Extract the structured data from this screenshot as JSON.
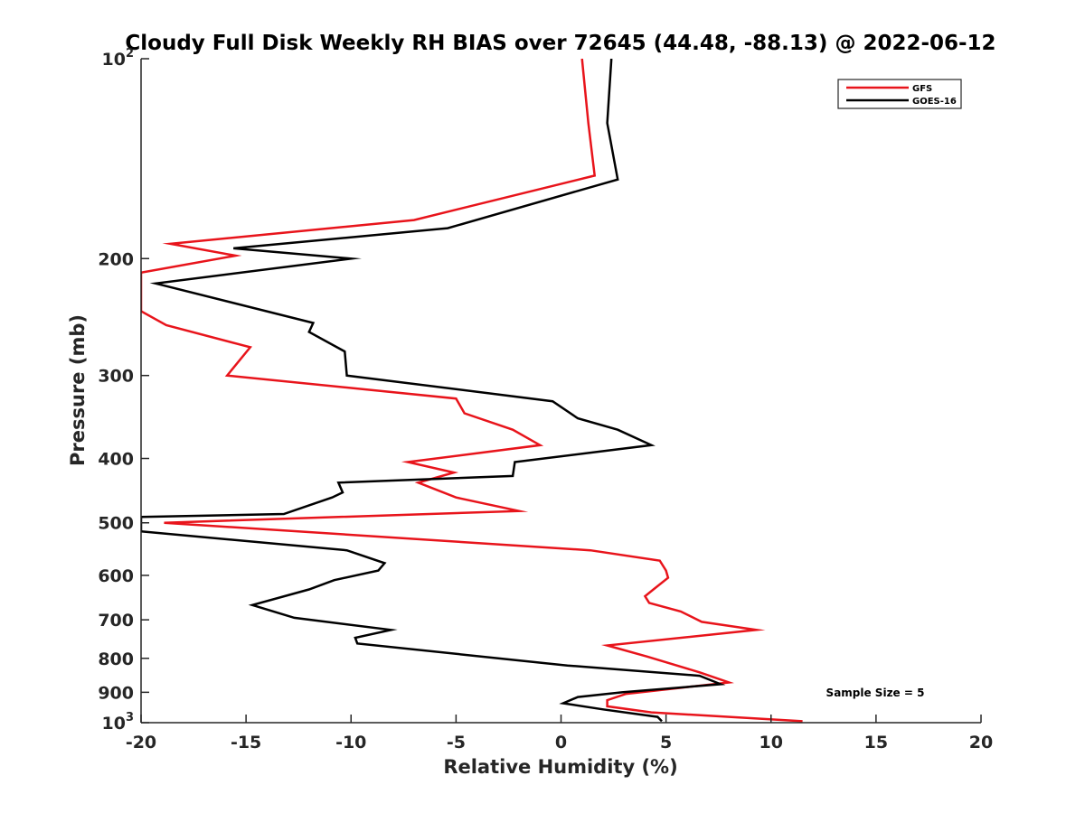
{
  "chart_data": {
    "type": "line",
    "title": "Cloudy Full Disk Weekly RH BIAS over 72645 (44.48, -88.13) @ 2022-06-12",
    "xlabel": "Relative Humidity (%)",
    "ylabel": "Pressure (mb)",
    "xlim": [
      -20,
      20
    ],
    "ylim": [
      100,
      1000
    ],
    "y_scale": "log",
    "y_reversed": true,
    "grid": false,
    "legend_position": "top-right",
    "x_ticks": [
      -20,
      -15,
      -10,
      -5,
      0,
      5,
      10,
      15,
      20
    ],
    "x_tick_labels": [
      "-20",
      "-15",
      "-10",
      "-5",
      "0",
      "5",
      "10",
      "15",
      "20"
    ],
    "y_ticks": [
      100,
      200,
      300,
      400,
      500,
      600,
      700,
      800,
      900,
      1000
    ],
    "y_tick_labels": [
      {
        "base": "10",
        "exp": "2"
      },
      {
        "base": "200",
        "exp": ""
      },
      {
        "base": "300",
        "exp": ""
      },
      {
        "base": "400",
        "exp": ""
      },
      {
        "base": "500",
        "exp": ""
      },
      {
        "base": "600",
        "exp": ""
      },
      {
        "base": "700",
        "exp": ""
      },
      {
        "base": "800",
        "exp": ""
      },
      {
        "base": "900",
        "exp": ""
      },
      {
        "base": "10",
        "exp": "3"
      }
    ],
    "annotation": "Sample Size = 5",
    "series": [
      {
        "name": "GFS",
        "color": "#e8141b",
        "points": [
          [
            1.0,
            100
          ],
          [
            1.3,
            125
          ],
          [
            1.6,
            150
          ],
          [
            -7.0,
            175
          ],
          [
            -18.6,
            190
          ],
          [
            -15.5,
            198
          ],
          [
            -20.0,
            210
          ],
          [
            -20.0,
            240
          ],
          [
            -18.8,
            252
          ],
          [
            -14.8,
            272
          ],
          [
            -15.9,
            300
          ],
          [
            -5.0,
            325
          ],
          [
            -4.6,
            342
          ],
          [
            -2.3,
            362
          ],
          [
            -1.0,
            382
          ],
          [
            -7.3,
            405
          ],
          [
            -5.1,
            420
          ],
          [
            -6.8,
            435
          ],
          [
            -5.0,
            458
          ],
          [
            -2.0,
            480
          ],
          [
            -18.9,
            500
          ],
          [
            1.4,
            550
          ],
          [
            4.7,
            570
          ],
          [
            5.0,
            590
          ],
          [
            5.1,
            605
          ],
          [
            4.4,
            630
          ],
          [
            4.0,
            645
          ],
          [
            4.2,
            660
          ],
          [
            5.7,
            680
          ],
          [
            6.7,
            705
          ],
          [
            9.3,
            725
          ],
          [
            2.2,
            765
          ],
          [
            4.1,
            795
          ],
          [
            6.6,
            840
          ],
          [
            8.0,
            870
          ],
          [
            3.1,
            905
          ],
          [
            2.2,
            925
          ],
          [
            2.2,
            945
          ],
          [
            4.3,
            965
          ],
          [
            11.5,
            995
          ]
        ]
      },
      {
        "name": "GOES-16",
        "color": "#000000",
        "points": [
          [
            2.4,
            100
          ],
          [
            2.2,
            125
          ],
          [
            2.7,
            152
          ],
          [
            -5.4,
            180
          ],
          [
            -15.6,
            193
          ],
          [
            -10.0,
            200
          ],
          [
            -19.3,
            218
          ],
          [
            -11.8,
            250
          ],
          [
            -12.0,
            258
          ],
          [
            -10.3,
            276
          ],
          [
            -10.2,
            300
          ],
          [
            -0.4,
            328
          ],
          [
            0.8,
            348
          ],
          [
            2.7,
            362
          ],
          [
            4.3,
            382
          ],
          [
            -2.2,
            405
          ],
          [
            -2.3,
            425
          ],
          [
            -10.6,
            435
          ],
          [
            -10.4,
            450
          ],
          [
            -10.9,
            458
          ],
          [
            -13.2,
            485
          ],
          [
            -20.0,
            490
          ],
          [
            -20.0,
            515
          ],
          [
            -10.2,
            550
          ],
          [
            -8.4,
            575
          ],
          [
            -8.7,
            590
          ],
          [
            -10.8,
            610
          ],
          [
            -12.0,
            630
          ],
          [
            -14.7,
            665
          ],
          [
            -12.7,
            695
          ],
          [
            -8.1,
            725
          ],
          [
            -9.8,
            745
          ],
          [
            -9.7,
            760
          ],
          [
            0.3,
            820
          ],
          [
            6.6,
            850
          ],
          [
            7.6,
            875
          ],
          [
            2.9,
            900
          ],
          [
            0.8,
            915
          ],
          [
            0.1,
            935
          ],
          [
            2.0,
            955
          ],
          [
            4.6,
            980
          ],
          [
            4.8,
            995
          ]
        ]
      }
    ]
  }
}
